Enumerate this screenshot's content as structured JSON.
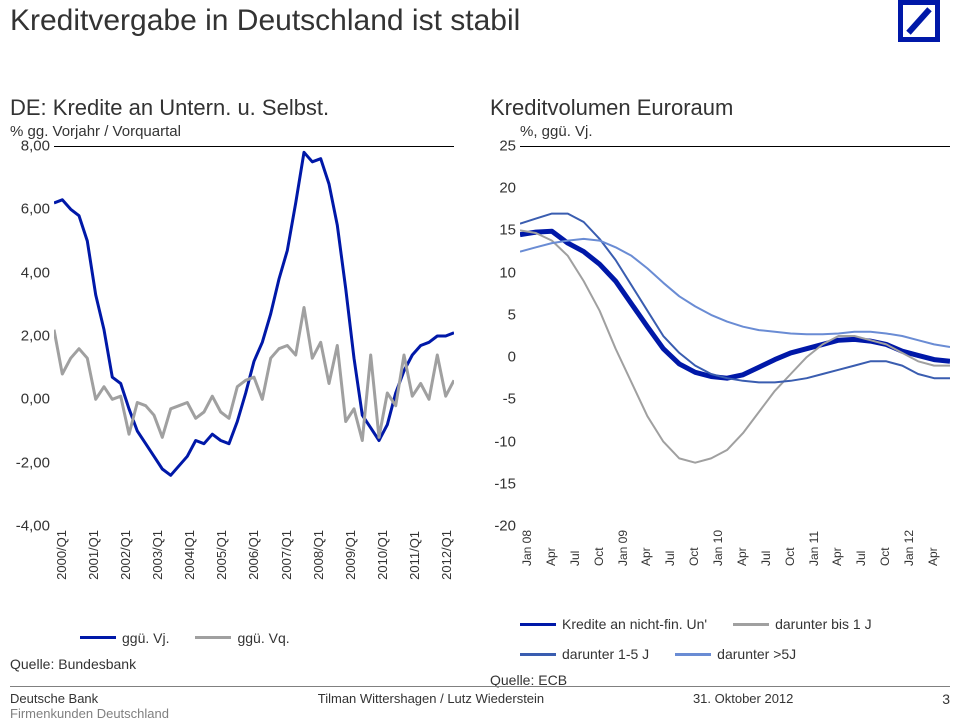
{
  "page_title": "Kreditvergabe in Deutschland ist stabil",
  "logo": {
    "size": 42,
    "border_color": "#0018a8",
    "slash_color": "#0018a8",
    "border_width": 5
  },
  "colors": {
    "primary_blue": "#0018a8",
    "grey": "#a0a0a0",
    "light_blue": "#6a8cd4",
    "mid_blue": "#3a5db0"
  },
  "left_chart": {
    "title": "DE: Kredite an Untern. u. Selbst.",
    "subtitle": "% gg. Vorjahr / Vorquartal",
    "ymin": -4.0,
    "ymax": 8.0,
    "ytick_step": 2.0,
    "y_labels": [
      "8,00",
      "6,00",
      "4,00",
      "2,00",
      "0,00",
      "-2,00",
      "-4,00"
    ],
    "x_labels": [
      "2000/Q1",
      "2001/Q1",
      "2002/Q1",
      "2003/Q1",
      "2004IQ1",
      "2005/Q1",
      "2006/Q1",
      "2007/Q1",
      "2008/Q1",
      "2009/Q1",
      "2010/Q1",
      "2011/Q1",
      "2012/Q1"
    ],
    "series": [
      {
        "name": "ggü. Vj.",
        "color": "#0018a8",
        "width": 3,
        "y": [
          6.2,
          6.3,
          6.0,
          5.8,
          5.0,
          3.3,
          2.2,
          0.7,
          0.5,
          -0.3,
          -1.0,
          -1.4,
          -1.8,
          -2.2,
          -2.4,
          -2.1,
          -1.8,
          -1.3,
          -1.4,
          -1.1,
          -1.3,
          -1.4,
          -0.7,
          0.2,
          1.2,
          1.8,
          2.7,
          3.8,
          4.7,
          6.2,
          7.8,
          7.5,
          7.6,
          6.8,
          5.5,
          3.5,
          1.3,
          -0.5,
          -0.9,
          -1.3,
          -0.8,
          0.2,
          0.9,
          1.4,
          1.7,
          1.8,
          2.0,
          2.0,
          2.1
        ]
      },
      {
        "name": "ggü. Vq.",
        "color": "#a0a0a0",
        "width": 3,
        "y": [
          2.2,
          0.8,
          1.3,
          1.6,
          1.3,
          0.0,
          0.4,
          0.0,
          0.1,
          -1.1,
          -0.1,
          -0.2,
          -0.5,
          -1.2,
          -0.3,
          -0.2,
          -0.1,
          -0.6,
          -0.4,
          0.1,
          -0.4,
          -0.6,
          0.4,
          0.6,
          0.7,
          0.0,
          1.3,
          1.6,
          1.7,
          1.4,
          2.9,
          1.3,
          1.8,
          0.5,
          1.7,
          -0.7,
          -0.3,
          -1.3,
          1.4,
          -1.2,
          0.2,
          -0.2,
          1.4,
          0.1,
          0.5,
          0.0,
          1.4,
          0.1,
          0.6
        ]
      }
    ],
    "source": "Quelle: Bundesbank",
    "legend": [
      {
        "label": "ggü. Vj.",
        "color": "#0018a8"
      },
      {
        "label": "ggü. Vq.",
        "color": "#a0a0a0"
      }
    ]
  },
  "right_chart": {
    "title": "Kreditvolumen Euroraum",
    "subtitle": "%, ggü. Vj.",
    "subtitle_x_offset": 30,
    "ymin": -20,
    "ymax": 25,
    "ytick_step": 5,
    "y_labels": [
      "25",
      "20",
      "15",
      "10",
      "5",
      "0",
      "-5",
      "-10",
      "-15",
      "-20"
    ],
    "x_labels": [
      "Jan 08",
      "Apr",
      "Jul",
      "Oct",
      "Jan 09",
      "Apr",
      "Jul",
      "Oct",
      "Jan 10",
      "Apr",
      "Jul",
      "Oct",
      "Jan 11",
      "Apr",
      "Jul",
      "Oct",
      "Jan 12",
      "Apr"
    ],
    "series": [
      {
        "name": "Kredite an nicht-fin. Un'",
        "color": "#0018a8",
        "width": 5,
        "y": [
          14.5,
          14.8,
          14.9,
          13.5,
          12.5,
          11.0,
          9.0,
          6.3,
          3.6,
          1.0,
          -0.8,
          -1.8,
          -2.3,
          -2.5,
          -2.1,
          -1.2,
          -0.3,
          0.5,
          1.0,
          1.5,
          2.0,
          2.1,
          1.9,
          1.5,
          0.7,
          0.2,
          -0.3,
          -0.5
        ]
      },
      {
        "name": "darunter bis 1 J",
        "color": "#a0a0a0",
        "width": 2,
        "y": [
          15.0,
          14.7,
          13.8,
          12.0,
          9.0,
          5.5,
          1.0,
          -3.0,
          -7.0,
          -10.0,
          -12.0,
          -12.5,
          -12.0,
          -11.0,
          -9.0,
          -6.5,
          -4.0,
          -2.0,
          0.0,
          1.5,
          2.5,
          2.5,
          2.0,
          1.5,
          0.5,
          -0.5,
          -1.0,
          -1.0
        ]
      },
      {
        "name": "darunter 1-5 J",
        "color": "#3a5db0",
        "width": 2,
        "y": [
          15.8,
          16.4,
          17.0,
          17.0,
          16.0,
          14.0,
          11.5,
          8.5,
          5.5,
          2.5,
          0.5,
          -1.0,
          -2.0,
          -2.5,
          -2.8,
          -3.0,
          -3.0,
          -2.8,
          -2.5,
          -2.0,
          -1.5,
          -1.0,
          -0.5,
          -0.5,
          -1.0,
          -2.0,
          -2.5,
          -2.5
        ]
      },
      {
        "name": "darunter >5J",
        "color": "#6a8cd4",
        "width": 2,
        "y": [
          12.5,
          13.0,
          13.5,
          13.8,
          14.0,
          13.8,
          13.0,
          12.0,
          10.5,
          8.8,
          7.2,
          6.0,
          5.0,
          4.2,
          3.6,
          3.2,
          3.0,
          2.8,
          2.7,
          2.7,
          2.8,
          3.0,
          3.0,
          2.8,
          2.5,
          2.0,
          1.5,
          1.2
        ]
      }
    ],
    "source": "Quelle: ECB",
    "legend": [
      {
        "label": "Kredite an nicht-fin. Un'",
        "color": "#0018a8"
      },
      {
        "label": "darunter bis 1 J",
        "color": "#a0a0a0"
      },
      {
        "label": "darunter 1-5 J",
        "color": "#3a5db0"
      },
      {
        "label": "darunter >5J",
        "color": "#6a8cd4"
      }
    ]
  },
  "footer": {
    "company": "Deutsche Bank",
    "dept": "Firmenkunden Deutschland",
    "center": "Tilman Wittershagen / Lutz Wiederstein",
    "date": "31. Oktober 2012",
    "page": "3"
  }
}
